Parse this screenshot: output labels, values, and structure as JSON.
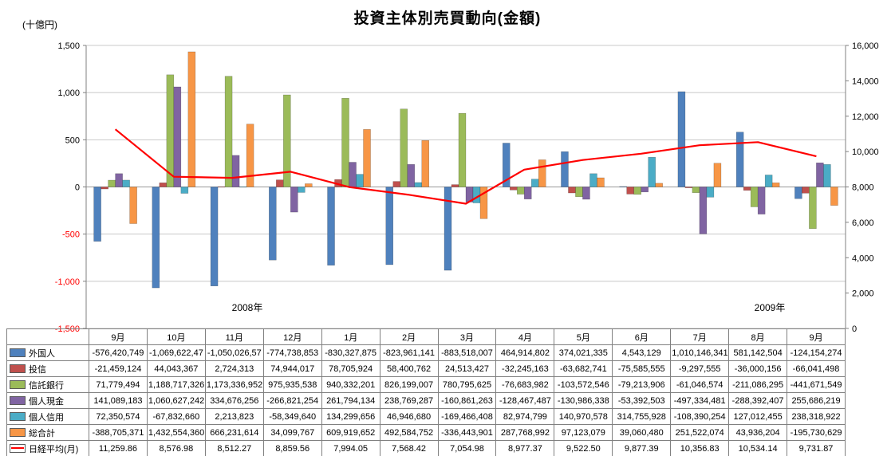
{
  "title": "投資主体別売買動向(金額)",
  "left_axis": {
    "unit_label": "(十億円)",
    "values": [
      1500,
      1000,
      500,
      0,
      -500,
      -1000,
      -1500
    ],
    "tick_labels": [
      "1,500",
      "1,000",
      "500",
      "0",
      "-500",
      "-1,000",
      "-1,500"
    ],
    "negative_label_color": "#FF0000"
  },
  "right_axis": {
    "values": [
      16000,
      14000,
      12000,
      10000,
      8000,
      6000,
      4000,
      2000,
      0
    ],
    "tick_labels": [
      "16,000",
      "14,000",
      "12,000",
      "10,000",
      "8,000",
      "6,000",
      "4,000",
      "2,000",
      "0"
    ]
  },
  "x_axis": {
    "months": [
      "9月",
      "10月",
      "11月",
      "12月",
      "1月",
      "2月",
      "3月",
      "4月",
      "5月",
      "6月",
      "7月",
      "8月",
      "9月"
    ],
    "year_labels": [
      "2008年",
      "2009年"
    ]
  },
  "chart_data": {
    "type": "bar",
    "subtype": "combo-bar-line",
    "title": "投資主体別売買動向(金額)",
    "categories": [
      "9月",
      "10月",
      "11月",
      "12月",
      "1月",
      "2月",
      "3月",
      "4月",
      "5月",
      "6月",
      "7月",
      "8月",
      "9月"
    ],
    "bar_value_unit": "十億円",
    "left_axis_range": [
      -1500,
      1500
    ],
    "right_axis_range": [
      0,
      16000
    ],
    "grid": true,
    "legend_position": "data-table-left-column",
    "series": [
      {
        "name": "外国人",
        "color": "#4F81BD",
        "values": [
          -576.42,
          -1069.62,
          -1050.03,
          -774.74,
          -830.33,
          -823.96,
          -883.52,
          464.91,
          374.02,
          4.54,
          1010.15,
          581.14,
          -124.15
        ]
      },
      {
        "name": "投信",
        "color": "#C0504D",
        "values": [
          -21.46,
          44.04,
          2.72,
          74.94,
          78.71,
          58.4,
          24.51,
          -32.25,
          -63.68,
          -75.59,
          -9.3,
          -36.0,
          -66.04
        ]
      },
      {
        "name": "信託銀行",
        "color": "#9BBB59",
        "values": [
          71.78,
          1188.72,
          1173.34,
          975.94,
          940.33,
          826.2,
          780.8,
          -76.68,
          -103.57,
          -79.21,
          -61.05,
          -211.09,
          -441.67
        ]
      },
      {
        "name": "個人現金",
        "color": "#8064A2",
        "values": [
          141.09,
          1060.63,
          334.68,
          -266.82,
          261.79,
          238.77,
          -160.86,
          -128.47,
          -130.99,
          -53.39,
          -497.33,
          -288.39,
          255.69
        ]
      },
      {
        "name": "個人信用",
        "color": "#4BACC6",
        "values": [
          72.35,
          -67.83,
          2.21,
          -58.35,
          134.3,
          46.95,
          -169.47,
          82.97,
          140.97,
          314.76,
          -108.39,
          127.01,
          238.32
        ]
      },
      {
        "name": "総合計",
        "color": "#F79646",
        "values": [
          -388.71,
          1432.55,
          666.23,
          34.1,
          609.92,
          492.58,
          -336.44,
          287.77,
          97.12,
          39.06,
          251.52,
          43.94,
          -195.73
        ]
      }
    ],
    "line_series": {
      "name": "日経平均(月)",
      "color": "#FF0000",
      "axis": "right",
      "values": [
        11259.86,
        8576.98,
        8512.27,
        8859.56,
        7994.05,
        7568.42,
        7054.98,
        8977.37,
        9522.5,
        9877.39,
        10356.83,
        10534.14,
        9731.87
      ]
    }
  },
  "table": {
    "corner_label": "",
    "rows": [
      {
        "name": "外国人",
        "key_color": "#4F81BD",
        "key_type": "bar",
        "cells": [
          "-576,420,749",
          "-1,069,622,47",
          "-1,050,026,57",
          "-774,738,853",
          "-830,327,875",
          "-823,961,141",
          "-883,518,007",
          "464,914,802",
          "374,021,335",
          "4,543,129",
          "1,010,146,341",
          "581,142,504",
          "-124,154,274"
        ]
      },
      {
        "name": "投信",
        "key_color": "#C0504D",
        "key_type": "bar",
        "cells": [
          "-21,459,124",
          "44,043,367",
          "2,724,313",
          "74,944,017",
          "78,705,924",
          "58,400,762",
          "24,513,427",
          "-32,245,163",
          "-63,682,741",
          "-75,585,555",
          "-9,297,555",
          "-36,000,156",
          "-66,041,498"
        ]
      },
      {
        "name": "信託銀行",
        "key_color": "#9BBB59",
        "key_type": "bar",
        "cells": [
          "71,779,494",
          "1,188,717,326",
          "1,173,336,952",
          "975,935,538",
          "940,332,201",
          "826,199,007",
          "780,795,625",
          "-76,683,982",
          "-103,572,546",
          "-79,213,906",
          "-61,046,574",
          "-211,086,295",
          "-441,671,549"
        ]
      },
      {
        "name": "個人現金",
        "key_color": "#8064A2",
        "key_type": "bar",
        "cells": [
          "141,089,183",
          "1,060,627,242",
          "334,676,256",
          "-266,821,254",
          "261,794,134",
          "238,769,287",
          "-160,861,263",
          "-128,467,487",
          "-130,986,338",
          "-53,392,503",
          "-497,334,481",
          "-288,392,407",
          "255,686,219"
        ]
      },
      {
        "name": "個人信用",
        "key_color": "#4BACC6",
        "key_type": "bar",
        "cells": [
          "72,350,574",
          "-67,832,660",
          "2,213,823",
          "-58,349,640",
          "134,299,656",
          "46,946,680",
          "-169,466,408",
          "82,974,799",
          "140,970,578",
          "314,755,928",
          "-108,390,254",
          "127,012,455",
          "238,318,922"
        ]
      },
      {
        "name": "総合計",
        "key_color": "#F79646",
        "key_type": "bar",
        "cells": [
          "-388,705,371",
          "1,432,554,360",
          "666,231,614",
          "34,099,767",
          "609,919,652",
          "492,584,752",
          "-336,443,901",
          "287,768,992",
          "97,123,079",
          "39,060,480",
          "251,522,074",
          "43,936,204",
          "-195,730,629"
        ]
      },
      {
        "name": "日経平均(月)",
        "key_color": "#FF0000",
        "key_type": "line",
        "cells": [
          "11,259.86",
          "8,576.98",
          "8,512.27",
          "8,859.56",
          "7,994.05",
          "7,568.42",
          "7,054.98",
          "8,977.37",
          "9,522.50",
          "9,877.39",
          "10,356.83",
          "10,534.14",
          "9,731.87"
        ]
      }
    ]
  }
}
